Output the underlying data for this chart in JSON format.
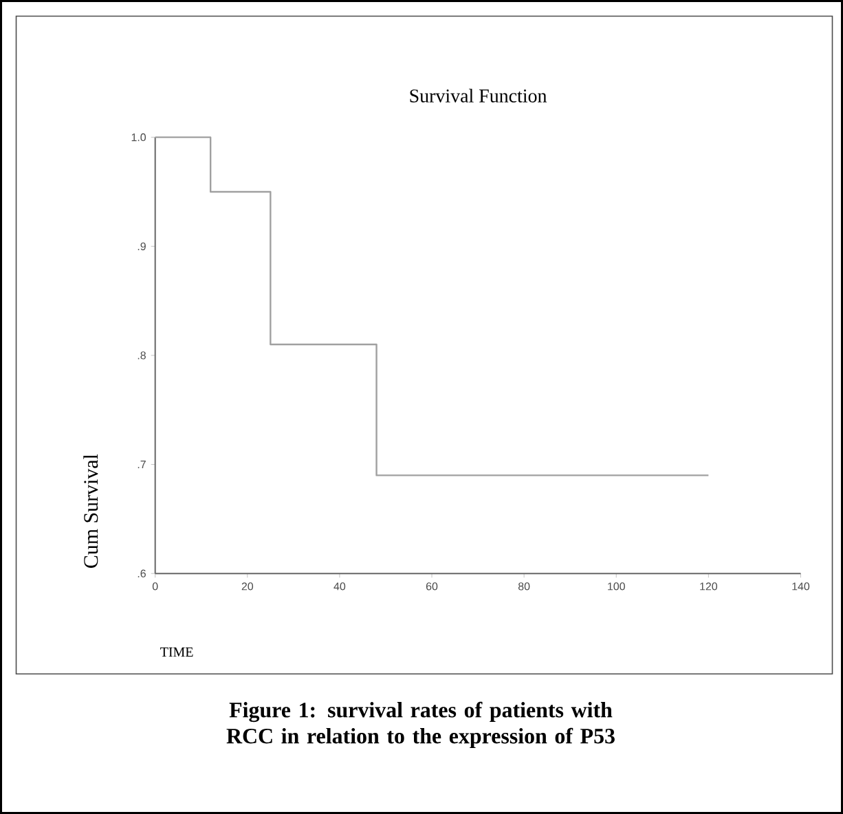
{
  "chart_data": {
    "type": "step",
    "title": "Survival Function",
    "xlabel": "TIME",
    "ylabel": "Cum Survival",
    "annotations": [
      "Figure 1: survival rates of patients with RCC in relation to the expression of P53"
    ],
    "x": [
      0,
      12,
      25,
      48,
      120
    ],
    "series": [
      {
        "color": "#a0a0a0",
        "values": [
          1.0,
          0.95,
          0.81,
          0.69,
          0.69
        ]
      }
    ],
    "xlim": [
      0,
      140
    ],
    "xticks": [
      0,
      20,
      40,
      60,
      80,
      100,
      120,
      140
    ],
    "ylim": [
      0.6,
      1.0
    ],
    "yticks": [
      {
        "value": 0.6,
        "label": ".6"
      },
      {
        "value": 0.7,
        "label": ".7"
      },
      {
        "value": 0.8,
        "label": ".8"
      },
      {
        "value": 0.9,
        "label": ".9"
      },
      {
        "value": 1.0,
        "label": "1.0"
      }
    ]
  }
}
